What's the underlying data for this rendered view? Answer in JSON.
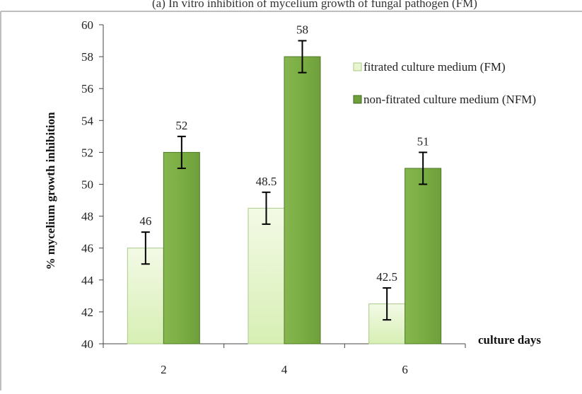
{
  "header_text": "(a) In vitro inhibition of mycelium growth of fungal pathogen (FM)",
  "chart_data": {
    "type": "bar",
    "categories": [
      "2",
      "4",
      "6"
    ],
    "series": [
      {
        "name": "fitrated culture medium (FM)",
        "values": [
          46,
          48.5,
          42.5
        ],
        "labels": [
          "46",
          "48.5",
          "42.5"
        ],
        "errors": [
          1,
          1,
          1
        ],
        "color": "#e8f5cf"
      },
      {
        "name": "non-fitrated culture medium (NFM)",
        "values": [
          52,
          58,
          51
        ],
        "labels": [
          "52",
          "58",
          "51"
        ],
        "errors": [
          1,
          1,
          1
        ],
        "color": "#7cac44"
      }
    ],
    "ylim": [
      40,
      60
    ],
    "yticks": [
      "40",
      "42",
      "44",
      "46",
      "48",
      "50",
      "52",
      "54",
      "56",
      "58",
      "60"
    ],
    "ylabel": "% mycelium growth inhibition",
    "xlabel": "culture days",
    "legend": "top-right",
    "grid": false
  }
}
